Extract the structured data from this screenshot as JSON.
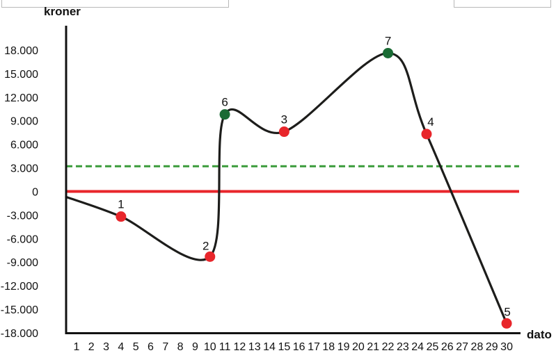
{
  "chart_data": {
    "type": "line",
    "ylabel": "kroner",
    "xlabel": "dato",
    "ylim": [
      -18000,
      21000
    ],
    "xlim": [
      0.3,
      30.7
    ],
    "y_ticks": [
      {
        "value": 18000,
        "label": "18.000"
      },
      {
        "value": 15000,
        "label": "15.000"
      },
      {
        "value": 12000,
        "label": "12.000"
      },
      {
        "value": 9000,
        "label": "9.000"
      },
      {
        "value": 6000,
        "label": "6.000"
      },
      {
        "value": 3000,
        "label": "3.000"
      },
      {
        "value": 0,
        "label": "0"
      },
      {
        "value": -3000,
        "label": "-3.000"
      },
      {
        "value": -6000,
        "label": "-6.000"
      },
      {
        "value": -9000,
        "label": "-9.000"
      },
      {
        "value": -12000,
        "label": "-12.000"
      },
      {
        "value": -15000,
        "label": "-15.000"
      },
      {
        "value": -18000,
        "label": "-18.000"
      }
    ],
    "x_ticks": [
      "1",
      "2",
      "3",
      "4",
      "5",
      "6",
      "7",
      "8",
      "9",
      "10",
      "11",
      "12",
      "13",
      "14",
      "15",
      "16",
      "17",
      "18",
      "19",
      "20",
      "21",
      "22",
      "23",
      "24",
      "25",
      "26",
      "27",
      "28",
      "29",
      "30"
    ],
    "series": [
      {
        "values": [
          {
            "x": 0.3,
            "y": -700
          },
          {
            "x": 4,
            "y": -3200
          },
          {
            "x": 10,
            "y": -8300
          },
          {
            "x": 11,
            "y": 9800
          },
          {
            "x": 15,
            "y": 7600
          },
          {
            "x": 22,
            "y": 17600
          },
          {
            "x": 24.6,
            "y": 7300
          },
          {
            "x": 30,
            "y": -16800
          }
        ]
      }
    ],
    "reference_lines": [
      {
        "y": 0,
        "color": "#e8262b",
        "style": "solid"
      },
      {
        "y": 3200,
        "color": "#3a9b3a",
        "style": "dashed"
      }
    ],
    "marked_points": [
      {
        "label": "1",
        "x": 4,
        "y": -3200,
        "color": "#e8262b"
      },
      {
        "label": "2",
        "x": 10,
        "y": -8300,
        "color": "#e8262b"
      },
      {
        "label": "6",
        "x": 11,
        "y": 9800,
        "color": "#1a6b34"
      },
      {
        "label": "3",
        "x": 15,
        "y": 7600,
        "color": "#e8262b"
      },
      {
        "label": "7",
        "x": 22,
        "y": 17600,
        "color": "#1a6b34"
      },
      {
        "label": "4",
        "x": 24.6,
        "y": 7300,
        "color": "#e8262b"
      },
      {
        "label": "5",
        "x": 30,
        "y": -16800,
        "color": "#e8262b"
      }
    ]
  }
}
